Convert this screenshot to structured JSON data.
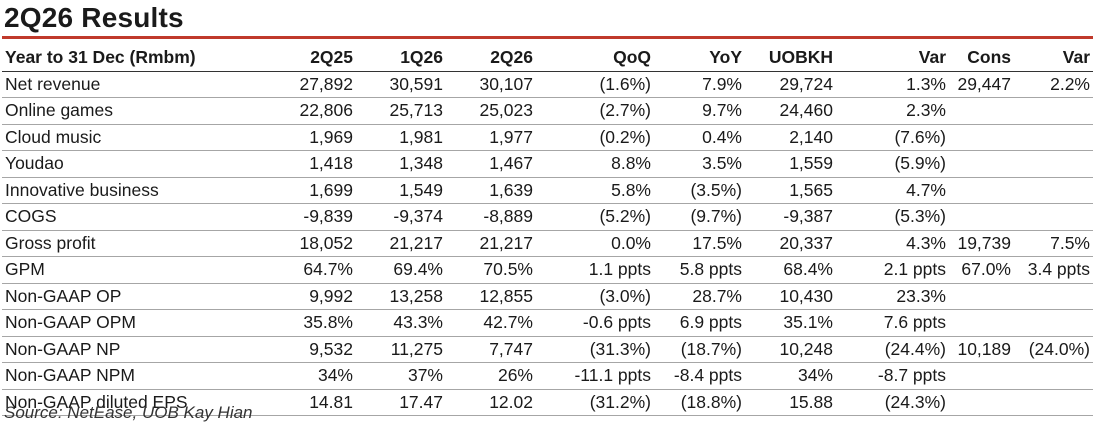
{
  "title": "2Q26 Results",
  "headers": [
    "Year to 31 Dec (Rmbm)",
    "2Q25",
    "1Q26",
    "2Q26",
    "QoQ",
    "YoY",
    "UOBKH",
    "Var",
    "Cons",
    "Var"
  ],
  "rows": [
    [
      "Net revenue",
      "27,892",
      "30,591",
      "30,107",
      "(1.6%)",
      "7.9%",
      "29,724",
      "1.3%",
      "29,447",
      "2.2%"
    ],
    [
      "Online games",
      "22,806",
      "25,713",
      "25,023",
      "(2.7%)",
      "9.7%",
      "24,460",
      "2.3%",
      "",
      ""
    ],
    [
      "Cloud music",
      "1,969",
      "1,981",
      "1,977",
      "(0.2%)",
      "0.4%",
      "2,140",
      "(7.6%)",
      "",
      ""
    ],
    [
      "Youdao",
      "1,418",
      "1,348",
      "1,467",
      "8.8%",
      "3.5%",
      "1,559",
      "(5.9%)",
      "",
      ""
    ],
    [
      "Innovative business",
      "1,699",
      "1,549",
      "1,639",
      "5.8%",
      "(3.5%)",
      "1,565",
      "4.7%",
      "",
      ""
    ],
    [
      "COGS",
      "-9,839",
      "-9,374",
      "-8,889",
      "(5.2%)",
      "(9.7%)",
      "-9,387",
      "(5.3%)",
      "",
      ""
    ],
    [
      "Gross profit",
      "18,052",
      "21,217",
      "21,217",
      "0.0%",
      "17.5%",
      "20,337",
      "4.3%",
      "19,739",
      "7.5%"
    ],
    [
      "GPM",
      "64.7%",
      "69.4%",
      "70.5%",
      "1.1 ppts",
      "5.8 ppts",
      "68.4%",
      "2.1 ppts",
      "67.0%",
      "3.4 ppts"
    ],
    [
      "Non-GAAP OP",
      "9,992",
      "13,258",
      "12,855",
      "(3.0%)",
      "28.7%",
      "10,430",
      "23.3%",
      "",
      ""
    ],
    [
      "Non-GAAP OPM",
      "35.8%",
      "43.3%",
      "42.7%",
      "-0.6 ppts",
      "6.9 ppts",
      "35.1%",
      "7.6 ppts",
      "",
      ""
    ],
    [
      "Non-GAAP NP",
      "9,532",
      "11,275",
      "7,747",
      "(31.3%)",
      "(18.7%)",
      "10,248",
      "(24.4%)",
      "10,189",
      "(24.0%)"
    ],
    [
      "Non-GAAP NPM",
      "34%",
      "37%",
      "26%",
      "-11.1 ppts",
      "-8.4 ppts",
      "34%",
      "-8.7 ppts",
      "",
      ""
    ],
    [
      "Non-GAAP diluted EPS",
      "14.81",
      "17.47",
      "12.02",
      "(31.2%)",
      "(18.8%)",
      "15.88",
      "(24.3%)",
      "",
      ""
    ]
  ],
  "source": "Source: NetEase, UOB Kay Hian",
  "accent_color": "#c0392b"
}
